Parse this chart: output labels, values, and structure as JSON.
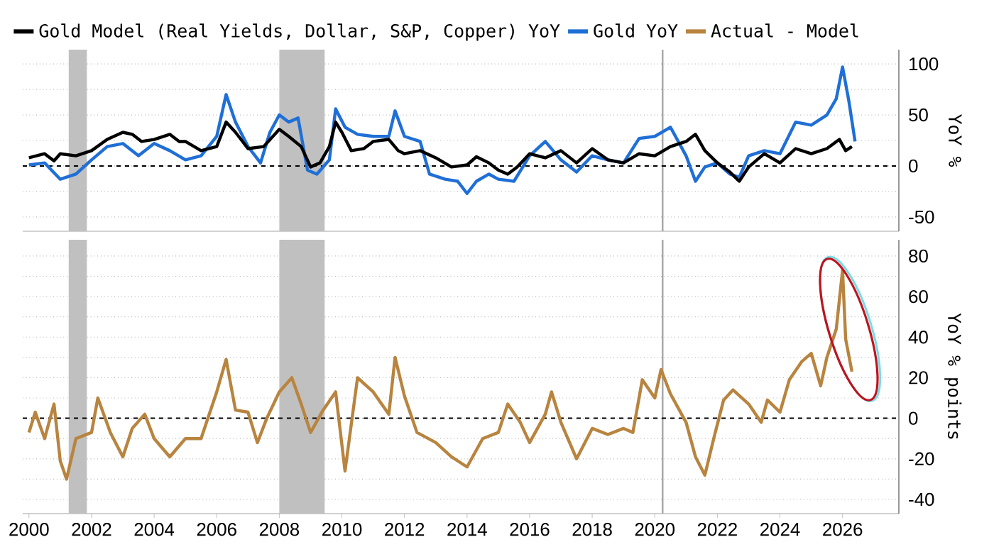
{
  "chart_data": [
    {
      "type": "line",
      "ylabel": "YoY %",
      "xlim": [
        1999.8,
        2027.8
      ],
      "xticks": [
        2000,
        2002,
        2004,
        2006,
        2008,
        2010,
        2012,
        2014,
        2016,
        2018,
        2020,
        2022,
        2024,
        2026
      ],
      "ylim": [
        -64,
        114
      ],
      "yticks": [
        -50,
        {
          "value": -25,
          "label": null
        },
        0,
        {
          "value": 25,
          "label": null
        },
        50,
        {
          "value": 75,
          "label": null
        },
        100
      ],
      "tick_labels": "y",
      "grid": "y",
      "legend": "top",
      "bands": [
        {
          "axis": "x",
          "from": 2001.27,
          "to": 2001.85,
          "color": "#c0c0c0"
        },
        {
          "axis": "x",
          "from": 2008.0,
          "to": 2009.45,
          "color": "#c0c0c0"
        }
      ],
      "ref_lines": [
        {
          "axis": "x",
          "value": 2020.25,
          "color": "#a6a6a6"
        },
        {
          "axis": "y",
          "value": 0,
          "color": "#000000",
          "line_style": "dashed"
        }
      ],
      "series": [
        {
          "name": "Gold Model (Real Yields, Dollar, S&P, Copper) YoY",
          "color": "#000000",
          "x": [
            2000,
            2000.5,
            2000.8,
            2001,
            2001.5,
            2002,
            2002.5,
            2003,
            2003.3,
            2003.6,
            2004,
            2004.5,
            2004.8,
            2005,
            2005.5,
            2006,
            2006.3,
            2006.6,
            2007,
            2007.5,
            2008,
            2008.3,
            2008.7,
            2009,
            2009.3,
            2009.6,
            2009.8,
            2010,
            2010.3,
            2010.7,
            2011,
            2011.5,
            2011.8,
            2012,
            2012.5,
            2013,
            2013.5,
            2014,
            2014.3,
            2014.7,
            2015,
            2015.3,
            2015.6,
            2016,
            2016.5,
            2017,
            2017.5,
            2018,
            2018.5,
            2019,
            2019.5,
            2020,
            2020.5,
            2021,
            2021.3,
            2021.6,
            2022,
            2022.4,
            2022.7,
            2023,
            2023.5,
            2024,
            2024.5,
            2025,
            2025.5,
            2025.9,
            2026.1,
            2026.3
          ],
          "values": [
            8,
            12,
            5,
            12,
            10,
            15,
            26,
            33,
            31,
            24,
            26,
            31,
            24,
            24,
            15,
            19,
            43,
            33,
            17,
            19,
            36,
            29,
            19,
            -1,
            3,
            19,
            43,
            33,
            15,
            17,
            24,
            26,
            15,
            12,
            15,
            8,
            -1,
            1,
            9,
            3,
            -4,
            -8,
            -1,
            12,
            8,
            15,
            3,
            17,
            6,
            3,
            12,
            10,
            19,
            24,
            31,
            15,
            3,
            -6,
            -15,
            -1,
            12,
            3,
            17,
            12,
            17,
            26,
            15,
            19
          ]
        },
        {
          "name": "Gold YoY",
          "color": "#1f6fd6",
          "x": [
            2000,
            2000.5,
            2001,
            2001.5,
            2002,
            2002.5,
            2003,
            2003.5,
            2004,
            2004.5,
            2005,
            2005.5,
            2006,
            2006.3,
            2006.6,
            2007,
            2007.4,
            2007.7,
            2008,
            2008.3,
            2008.6,
            2008.9,
            2009.2,
            2009.6,
            2009.8,
            2010.1,
            2010.5,
            2011,
            2011.5,
            2011.7,
            2012,
            2012.5,
            2012.8,
            2013.3,
            2013.7,
            2014,
            2014.3,
            2014.7,
            2015,
            2015.5,
            2016,
            2016.5,
            2017,
            2017.5,
            2018,
            2018.5,
            2019,
            2019.5,
            2020,
            2020.5,
            2021,
            2021.3,
            2021.6,
            2022,
            2022.4,
            2022.7,
            2023,
            2023.5,
            2024,
            2024.5,
            2025,
            2025.5,
            2025.8,
            2026,
            2026.2,
            2026.4
          ],
          "values": [
            1,
            3,
            -13,
            -8,
            6,
            19,
            22,
            10,
            22,
            15,
            6,
            10,
            29,
            70,
            43,
            19,
            3,
            33,
            50,
            43,
            47,
            -4,
            -8,
            6,
            56,
            38,
            31,
            29,
            29,
            54,
            29,
            24,
            -8,
            -13,
            -15,
            -27,
            -15,
            -8,
            -13,
            -15,
            10,
            24,
            6,
            -6,
            10,
            6,
            3,
            27,
            29,
            38,
            10,
            -15,
            -1,
            3,
            -8,
            -11,
            10,
            15,
            12,
            43,
            40,
            50,
            66,
            97,
            64,
            24
          ]
        }
      ]
    },
    {
      "type": "line",
      "ylabel": "YoY % points",
      "xlim": [
        1999.8,
        2027.8
      ],
      "xticks": [
        2000,
        2002,
        2004,
        2006,
        2008,
        2010,
        2012,
        2014,
        2016,
        2018,
        2020,
        2022,
        2024,
        2026
      ],
      "ylim": [
        -47,
        88
      ],
      "yticks": [
        -40,
        {
          "value": -30,
          "label": null
        },
        -20,
        {
          "value": -10,
          "label": null
        },
        0,
        {
          "value": 10,
          "label": null
        },
        20,
        {
          "value": 30,
          "label": null
        },
        40,
        {
          "value": 50,
          "label": null
        },
        60,
        {
          "value": 70,
          "label": null
        },
        80
      ],
      "grid": "y",
      "legend": "top",
      "bands": [
        {
          "axis": "x",
          "from": 2001.27,
          "to": 2001.85,
          "color": "#c0c0c0"
        },
        {
          "axis": "x",
          "from": 2008.0,
          "to": 2009.45,
          "color": "#c0c0c0"
        }
      ],
      "ref_lines": [
        {
          "axis": "x",
          "value": 2020.25,
          "color": "#a6a6a6"
        },
        {
          "axis": "y",
          "value": 0,
          "color": "#000000",
          "line_style": "dashed"
        }
      ],
      "series": [
        {
          "name": "Actual - Model",
          "color": "#b8843f",
          "x": [
            2000,
            2000.2,
            2000.5,
            2000.8,
            2001,
            2001.2,
            2001.5,
            2002,
            2002.2,
            2002.6,
            2003,
            2003.3,
            2003.7,
            2004,
            2004.5,
            2005,
            2005.5,
            2006,
            2006.3,
            2006.6,
            2007,
            2007.3,
            2007.6,
            2008,
            2008.4,
            2008.7,
            2009,
            2009.4,
            2009.8,
            2010.1,
            2010.5,
            2011,
            2011.5,
            2011.7,
            2012,
            2012.4,
            2013,
            2013.5,
            2014,
            2014.5,
            2015,
            2015.3,
            2015.7,
            2016,
            2016.5,
            2016.7,
            2017,
            2017.5,
            2018,
            2018.5,
            2019,
            2019.3,
            2019.6,
            2020,
            2020.2,
            2020.5,
            2021,
            2021.3,
            2021.6,
            2021.9,
            2022.2,
            2022.5,
            2023,
            2023.4,
            2023.6,
            2024,
            2024.3,
            2024.7,
            2025,
            2025.3,
            2025.5,
            2025.8,
            2026,
            2026.1,
            2026.3
          ],
          "values": [
            -7,
            3,
            -10,
            7,
            -21,
            -30,
            -10,
            -7,
            10,
            -7,
            -19,
            -5,
            2,
            -10,
            -19,
            -10,
            -10,
            13,
            29,
            4,
            3,
            -12,
            0,
            13,
            20,
            7,
            -7,
            4,
            13,
            -26,
            20,
            13,
            2,
            30,
            11,
            -7,
            -12,
            -19,
            -24,
            -10,
            -7,
            7,
            -2,
            -12,
            2,
            13,
            -2,
            -20,
            -5,
            -8,
            -5,
            -7,
            19,
            10,
            24,
            12,
            -2,
            -19,
            -28,
            -9,
            9,
            14,
            7,
            -2,
            9,
            3,
            19,
            28,
            32,
            16,
            30,
            44,
            73,
            39,
            23
          ]
        }
      ]
    }
  ]
}
